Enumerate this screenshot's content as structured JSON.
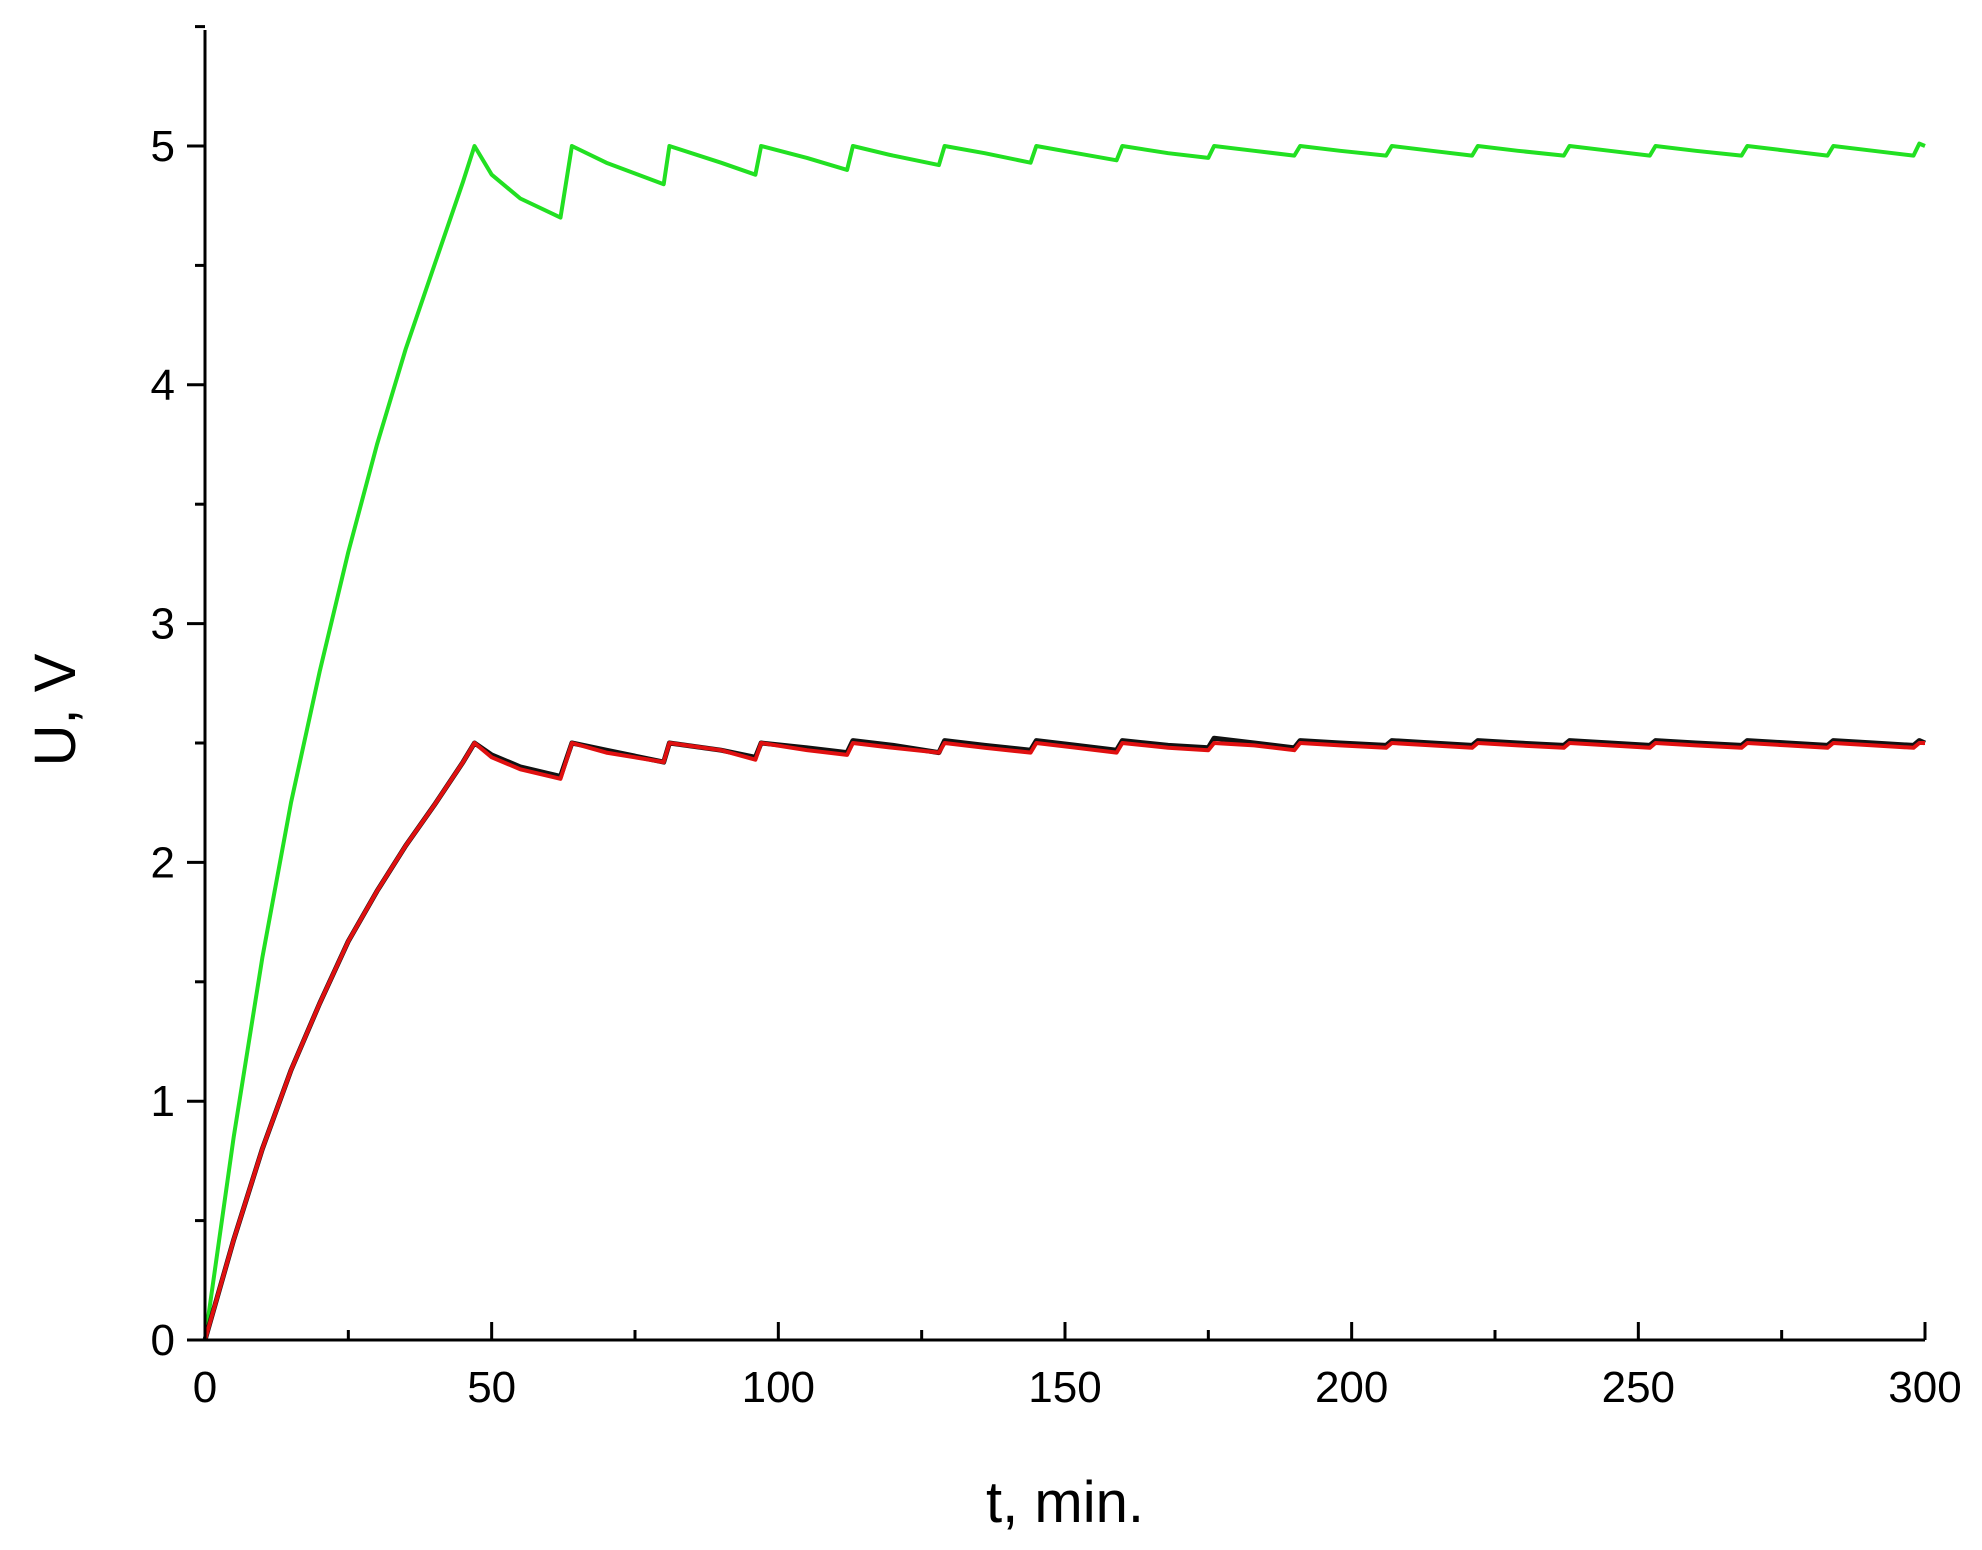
{
  "chart_data": {
    "type": "line",
    "xlabel": "t, min.",
    "ylabel": "U, V",
    "xlim": [
      0,
      300
    ],
    "ylim": [
      0,
      5.5
    ],
    "x_ticks": [
      "0",
      "50",
      "100",
      "150",
      "200",
      "250",
      "300"
    ],
    "y_ticks": [
      "0",
      "1",
      "2",
      "3",
      "4",
      "5"
    ],
    "grid": false,
    "legend": "none",
    "series": [
      {
        "color": "#22e022",
        "points": [
          [
            0,
            0
          ],
          [
            5,
            0.85
          ],
          [
            10,
            1.6
          ],
          [
            15,
            2.25
          ],
          [
            20,
            2.8
          ],
          [
            25,
            3.3
          ],
          [
            30,
            3.75
          ],
          [
            35,
            4.15
          ],
          [
            40,
            4.5
          ],
          [
            45,
            4.85
          ],
          [
            47,
            5.0
          ],
          [
            50,
            4.88
          ],
          [
            55,
            4.78
          ],
          [
            62,
            4.7
          ],
          [
            64,
            5.0
          ],
          [
            70,
            4.93
          ],
          [
            80,
            4.84
          ],
          [
            81,
            5.0
          ],
          [
            90,
            4.93
          ],
          [
            96,
            4.88
          ],
          [
            97,
            5.0
          ],
          [
            105,
            4.95
          ],
          [
            112,
            4.9
          ],
          [
            113,
            5.0
          ],
          [
            120,
            4.96
          ],
          [
            128,
            4.92
          ],
          [
            129,
            5.0
          ],
          [
            136,
            4.97
          ],
          [
            144,
            4.93
          ],
          [
            145,
            5.0
          ],
          [
            152,
            4.97
          ],
          [
            159,
            4.94
          ],
          [
            160,
            5.0
          ],
          [
            168,
            4.97
          ],
          [
            175,
            4.95
          ],
          [
            176,
            5.0
          ],
          [
            183,
            4.98
          ],
          [
            190,
            4.96
          ],
          [
            191,
            5.0
          ],
          [
            198,
            4.98
          ],
          [
            206,
            4.96
          ],
          [
            207,
            5.0
          ],
          [
            214,
            4.98
          ],
          [
            221,
            4.96
          ],
          [
            222,
            5.0
          ],
          [
            229,
            4.98
          ],
          [
            237,
            4.96
          ],
          [
            238,
            5.0
          ],
          [
            245,
            4.98
          ],
          [
            252,
            4.96
          ],
          [
            253,
            5.0
          ],
          [
            260,
            4.98
          ],
          [
            268,
            4.96
          ],
          [
            269,
            5.0
          ],
          [
            276,
            4.98
          ],
          [
            283,
            4.96
          ],
          [
            284,
            5.0
          ],
          [
            291,
            4.98
          ],
          [
            298,
            4.96
          ],
          [
            299,
            5.01
          ],
          [
            300,
            5.0
          ]
        ]
      },
      {
        "color": "#111111",
        "points": [
          [
            0,
            0
          ],
          [
            5,
            0.42
          ],
          [
            10,
            0.8
          ],
          [
            15,
            1.13
          ],
          [
            20,
            1.41
          ],
          [
            25,
            1.67
          ],
          [
            30,
            1.88
          ],
          [
            35,
            2.07
          ],
          [
            40,
            2.24
          ],
          [
            45,
            2.42
          ],
          [
            47,
            2.5
          ],
          [
            50,
            2.45
          ],
          [
            55,
            2.4
          ],
          [
            62,
            2.36
          ],
          [
            64,
            2.5
          ],
          [
            70,
            2.47
          ],
          [
            80,
            2.42
          ],
          [
            81,
            2.5
          ],
          [
            90,
            2.47
          ],
          [
            96,
            2.44
          ],
          [
            97,
            2.5
          ],
          [
            105,
            2.48
          ],
          [
            112,
            2.46
          ],
          [
            113,
            2.51
          ],
          [
            120,
            2.49
          ],
          [
            128,
            2.46
          ],
          [
            129,
            2.51
          ],
          [
            136,
            2.49
          ],
          [
            144,
            2.47
          ],
          [
            145,
            2.51
          ],
          [
            152,
            2.49
          ],
          [
            159,
            2.47
          ],
          [
            160,
            2.51
          ],
          [
            168,
            2.49
          ],
          [
            175,
            2.48
          ],
          [
            176,
            2.52
          ],
          [
            183,
            2.5
          ],
          [
            190,
            2.48
          ],
          [
            191,
            2.51
          ],
          [
            198,
            2.5
          ],
          [
            206,
            2.49
          ],
          [
            207,
            2.51
          ],
          [
            214,
            2.5
          ],
          [
            221,
            2.49
          ],
          [
            222,
            2.51
          ],
          [
            229,
            2.5
          ],
          [
            237,
            2.49
          ],
          [
            238,
            2.51
          ],
          [
            245,
            2.5
          ],
          [
            252,
            2.49
          ],
          [
            253,
            2.51
          ],
          [
            260,
            2.5
          ],
          [
            268,
            2.49
          ],
          [
            269,
            2.51
          ],
          [
            276,
            2.5
          ],
          [
            283,
            2.49
          ],
          [
            284,
            2.51
          ],
          [
            291,
            2.5
          ],
          [
            298,
            2.49
          ],
          [
            299,
            2.51
          ],
          [
            300,
            2.5
          ]
        ]
      },
      {
        "color": "#e01010",
        "points": [
          [
            0,
            0
          ],
          [
            5,
            0.42
          ],
          [
            10,
            0.8
          ],
          [
            15,
            1.13
          ],
          [
            20,
            1.41
          ],
          [
            25,
            1.67
          ],
          [
            30,
            1.88
          ],
          [
            35,
            2.07
          ],
          [
            40,
            2.24
          ],
          [
            45,
            2.42
          ],
          [
            47,
            2.5
          ],
          [
            50,
            2.44
          ],
          [
            55,
            2.39
          ],
          [
            62,
            2.35
          ],
          [
            64,
            2.5
          ],
          [
            70,
            2.46
          ],
          [
            80,
            2.42
          ],
          [
            81,
            2.5
          ],
          [
            90,
            2.47
          ],
          [
            96,
            2.43
          ],
          [
            97,
            2.5
          ],
          [
            105,
            2.47
          ],
          [
            112,
            2.45
          ],
          [
            113,
            2.5
          ],
          [
            120,
            2.48
          ],
          [
            128,
            2.46
          ],
          [
            129,
            2.5
          ],
          [
            136,
            2.48
          ],
          [
            144,
            2.46
          ],
          [
            145,
            2.5
          ],
          [
            152,
            2.48
          ],
          [
            159,
            2.46
          ],
          [
            160,
            2.5
          ],
          [
            168,
            2.48
          ],
          [
            175,
            2.47
          ],
          [
            176,
            2.5
          ],
          [
            183,
            2.49
          ],
          [
            190,
            2.47
          ],
          [
            191,
            2.5
          ],
          [
            198,
            2.49
          ],
          [
            206,
            2.48
          ],
          [
            207,
            2.5
          ],
          [
            214,
            2.49
          ],
          [
            221,
            2.48
          ],
          [
            222,
            2.5
          ],
          [
            229,
            2.49
          ],
          [
            237,
            2.48
          ],
          [
            238,
            2.5
          ],
          [
            245,
            2.49
          ],
          [
            252,
            2.48
          ],
          [
            253,
            2.5
          ],
          [
            260,
            2.49
          ],
          [
            268,
            2.48
          ],
          [
            269,
            2.5
          ],
          [
            276,
            2.49
          ],
          [
            283,
            2.48
          ],
          [
            284,
            2.5
          ],
          [
            291,
            2.49
          ],
          [
            298,
            2.48
          ],
          [
            299,
            2.5
          ],
          [
            300,
            2.5
          ]
        ]
      }
    ]
  }
}
